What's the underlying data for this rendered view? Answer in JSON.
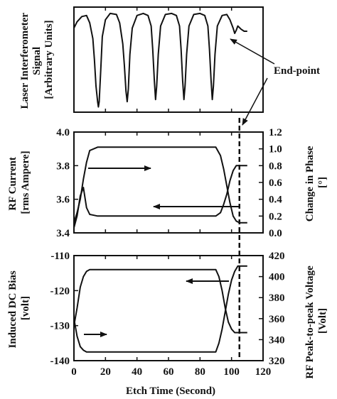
{
  "chart_data": [
    {
      "type": "line",
      "panel": "top",
      "ylabel": "Laser Interferometer Signal [Arbitrary Units]",
      "ylabel_lines": [
        "Laser Interferometer",
        "Signal",
        "[Arbitrary Units]"
      ],
      "xlim": [
        0,
        120
      ],
      "ylim": [
        0,
        1
      ],
      "yticks": [],
      "annotation": "End-point",
      "endpoint_x": 105,
      "series": [
        {
          "x": [
            0,
            2,
            5,
            8,
            10,
            12,
            13,
            14,
            15,
            15.5,
            16,
            17,
            18,
            20,
            23,
            27,
            29,
            31,
            32,
            33,
            33.8,
            34.5,
            35.5,
            37,
            40,
            44,
            47,
            49,
            50,
            51,
            51.8,
            52.5,
            53.5,
            55,
            58,
            62,
            65,
            67,
            68,
            69,
            69.8,
            70.5,
            71.5,
            73,
            76,
            80,
            83,
            85,
            86,
            87,
            87.8,
            88.5,
            89.5,
            91,
            94,
            97,
            99,
            101,
            102,
            103,
            104,
            106,
            108,
            110
          ],
          "y": [
            0.8,
            0.86,
            0.91,
            0.92,
            0.85,
            0.7,
            0.5,
            0.25,
            0.1,
            0.05,
            0.1,
            0.4,
            0.72,
            0.88,
            0.94,
            0.93,
            0.85,
            0.65,
            0.45,
            0.2,
            0.1,
            0.22,
            0.55,
            0.8,
            0.92,
            0.94,
            0.92,
            0.82,
            0.6,
            0.3,
            0.12,
            0.25,
            0.55,
            0.82,
            0.93,
            0.94,
            0.92,
            0.82,
            0.6,
            0.3,
            0.12,
            0.25,
            0.55,
            0.82,
            0.93,
            0.94,
            0.92,
            0.82,
            0.6,
            0.3,
            0.12,
            0.25,
            0.55,
            0.82,
            0.92,
            0.93,
            0.88,
            0.8,
            0.75,
            0.78,
            0.82,
            0.79,
            0.77,
            0.77
          ]
        }
      ]
    },
    {
      "type": "line",
      "panel": "middle",
      "ylabel": "RF Current [rms Ampere]",
      "ylabel_lines": [
        "RF Current",
        "[rms Ampere]"
      ],
      "ylabel_right": "Change in Phase [°]",
      "ylabel_right_lines": [
        "Change in Phase",
        "[°]"
      ],
      "xlim": [
        0,
        120
      ],
      "ylim": [
        3.4,
        4.0
      ],
      "yticks": [
        "3.4",
        "3.6",
        "3.8",
        "4.0"
      ],
      "ylim_right": [
        0,
        1.2
      ],
      "yticks_right": [
        "0.0",
        "0.2",
        "0.4",
        "0.6",
        "0.8",
        "1.0",
        "1.2"
      ],
      "series": [
        {
          "x": [
            0,
            2,
            4,
            6,
            8,
            10,
            15,
            30,
            50,
            70,
            90,
            93,
            95,
            97,
            99,
            101,
            103,
            105,
            110
          ],
          "y": [
            3.43,
            3.5,
            3.62,
            3.67,
            3.55,
            3.51,
            3.5,
            3.5,
            3.5,
            3.5,
            3.5,
            3.52,
            3.57,
            3.63,
            3.71,
            3.77,
            3.8,
            3.8,
            3.8
          ]
        },
        {
          "x": [
            0,
            2,
            4,
            6,
            8,
            10,
            15,
            30,
            50,
            70,
            90,
            93,
            95,
            97,
            99,
            101,
            103,
            105,
            110
          ],
          "y": [
            3.46,
            3.52,
            3.6,
            3.72,
            3.82,
            3.89,
            3.91,
            3.91,
            3.91,
            3.91,
            3.91,
            3.86,
            3.78,
            3.68,
            3.58,
            3.5,
            3.47,
            3.46,
            3.46
          ]
        }
      ]
    },
    {
      "type": "line",
      "panel": "bottom",
      "ylabel": "Induced DC Bias [volt]",
      "ylabel_lines": [
        "Induced DC Bias",
        "[volt]"
      ],
      "ylabel_right": "RF Peak-to-peak Voltage [Volt]",
      "ylabel_right_lines": [
        "RF Peak-to-peak Voltage",
        "[Volt]"
      ],
      "xlim": [
        0,
        120
      ],
      "xticks": [
        "0",
        "20",
        "40",
        "60",
        "80",
        "100",
        "120"
      ],
      "xlabel": "Etch Time (Second)",
      "ylim": [
        -140,
        -110
      ],
      "yticks": [
        "-140",
        "-130",
        "-120",
        "-110"
      ],
      "ylim_right": [
        320,
        420
      ],
      "yticks_right": [
        "320",
        "340",
        "360",
        "380",
        "400",
        "420"
      ],
      "series": [
        {
          "x": [
            0,
            2,
            4,
            6,
            8,
            10,
            15,
            30,
            50,
            70,
            90,
            92,
            94,
            96,
            98,
            100,
            102,
            104,
            106,
            110
          ],
          "y": [
            -130,
            -125,
            -119,
            -116,
            -114.5,
            -114,
            -114,
            -114,
            -114,
            -114,
            -114,
            -116,
            -120,
            -125,
            -129,
            -131,
            -132,
            -132,
            -132,
            -132
          ]
        },
        {
          "x": [
            0,
            2,
            4,
            6,
            8,
            10,
            15,
            30,
            50,
            70,
            90,
            92,
            94,
            96,
            98,
            100,
            102,
            104,
            106,
            110
          ],
          "y": [
            -128,
            -133,
            -136,
            -137,
            -137.5,
            -137.5,
            -137.5,
            -137.5,
            -137.5,
            -137.5,
            -137.5,
            -135,
            -131,
            -126,
            -121,
            -117,
            -114.5,
            -113,
            -113,
            -113
          ]
        }
      ]
    }
  ]
}
